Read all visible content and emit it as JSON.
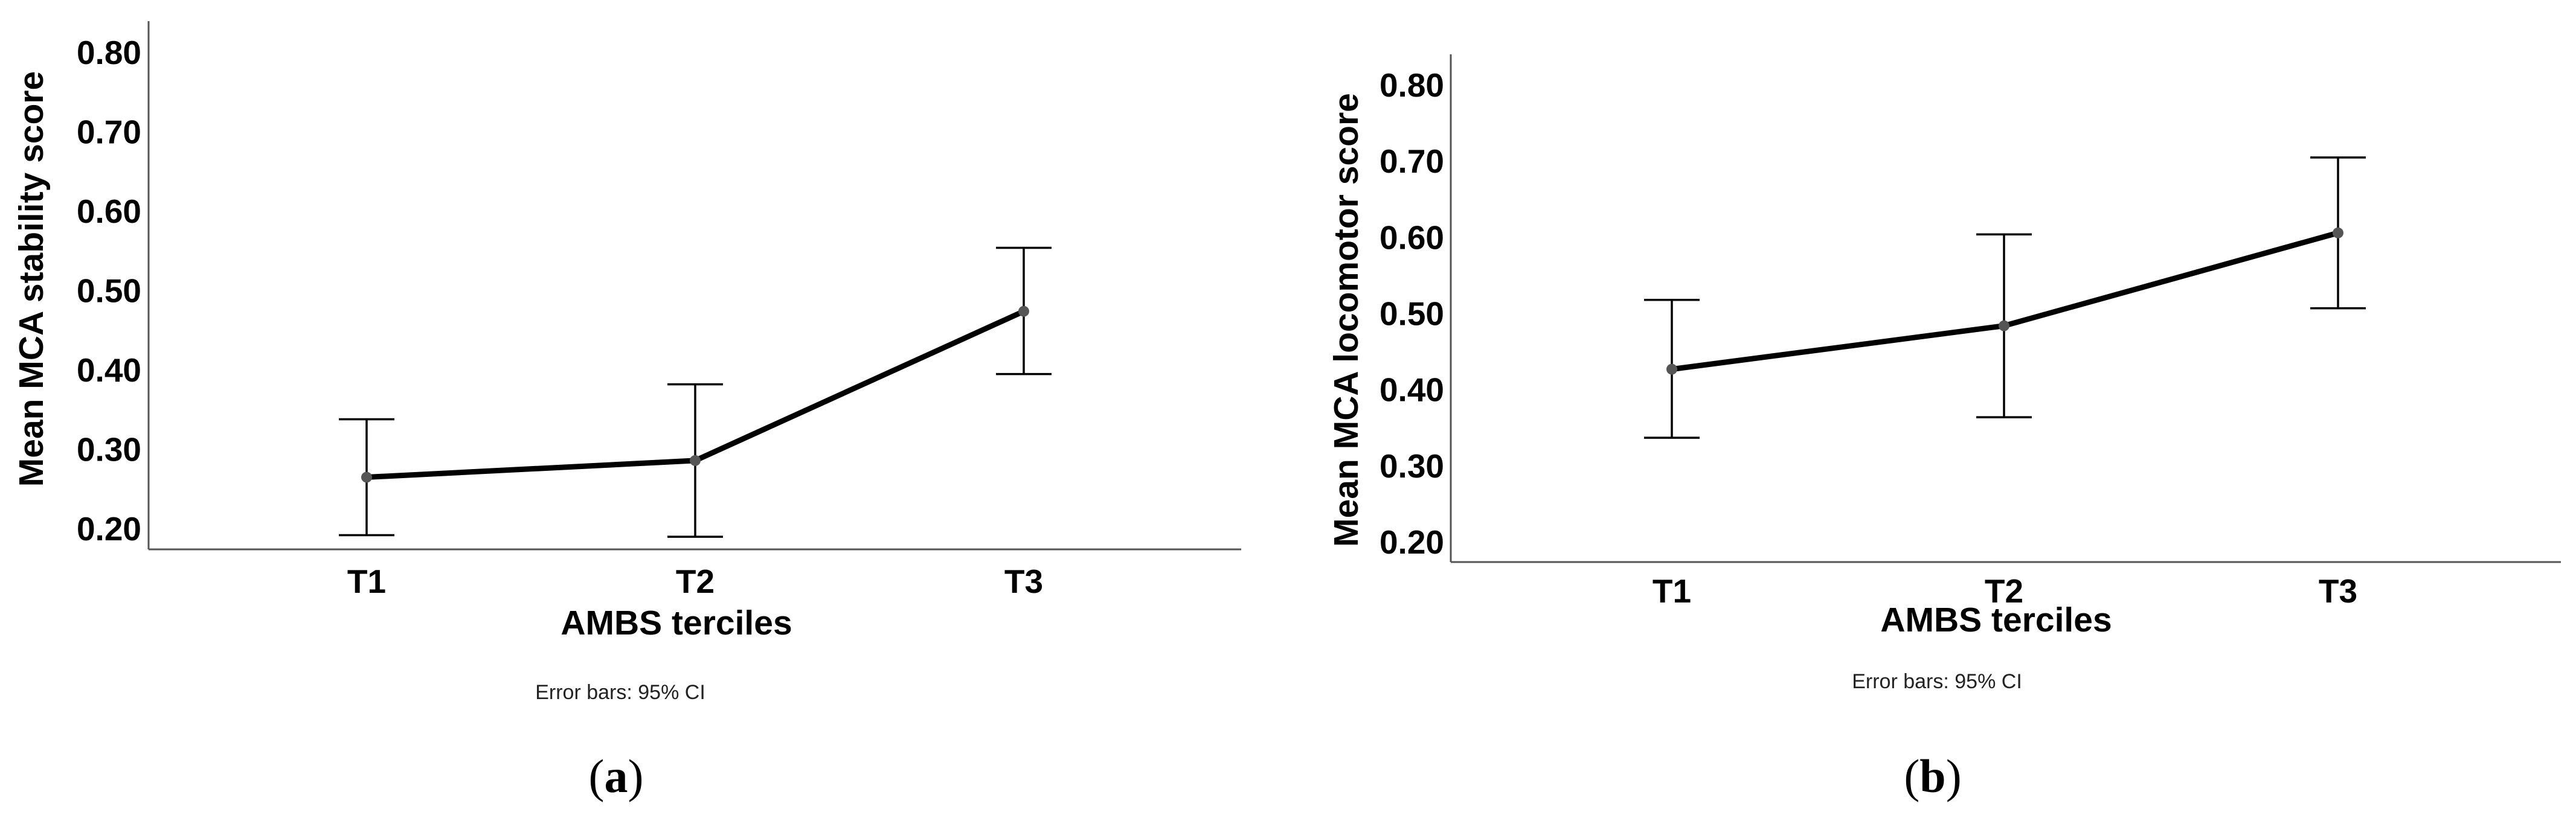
{
  "chart_data": [
    {
      "type": "line",
      "panel_label": "a",
      "categories": [
        "T1",
        "T2",
        "T3"
      ],
      "values": [
        0.265,
        0.286,
        0.474
      ],
      "ci_lower": [
        0.192,
        0.19,
        0.395
      ],
      "ci_upper": [
        0.338,
        0.382,
        0.554
      ],
      "xlabel": "AMBS terciles",
      "ylabel": "Mean MCA stability score",
      "yticks": [
        "0.20",
        "0.30",
        "0.40",
        "0.50",
        "0.60",
        "0.70",
        "0.80"
      ],
      "ylim": [
        0.17,
        0.84
      ],
      "note": "Error bars: 95% CI",
      "grid": false,
      "legend": "none"
    },
    {
      "type": "line",
      "panel_label": "b",
      "categories": [
        "T1",
        "T2",
        "T3"
      ],
      "values": [
        0.427,
        0.484,
        0.606
      ],
      "ci_lower": [
        0.337,
        0.364,
        0.507
      ],
      "ci_upper": [
        0.518,
        0.604,
        0.705
      ],
      "xlabel": "AMBS terciles",
      "ylabel": "Mean MCA locomotor score",
      "yticks": [
        "0.20",
        "0.30",
        "0.40",
        "0.50",
        "0.60",
        "0.70",
        "0.80"
      ],
      "ylim": [
        0.17,
        0.84
      ],
      "note": "Error bars: 95% CI",
      "grid": false,
      "legend": "none"
    }
  ]
}
